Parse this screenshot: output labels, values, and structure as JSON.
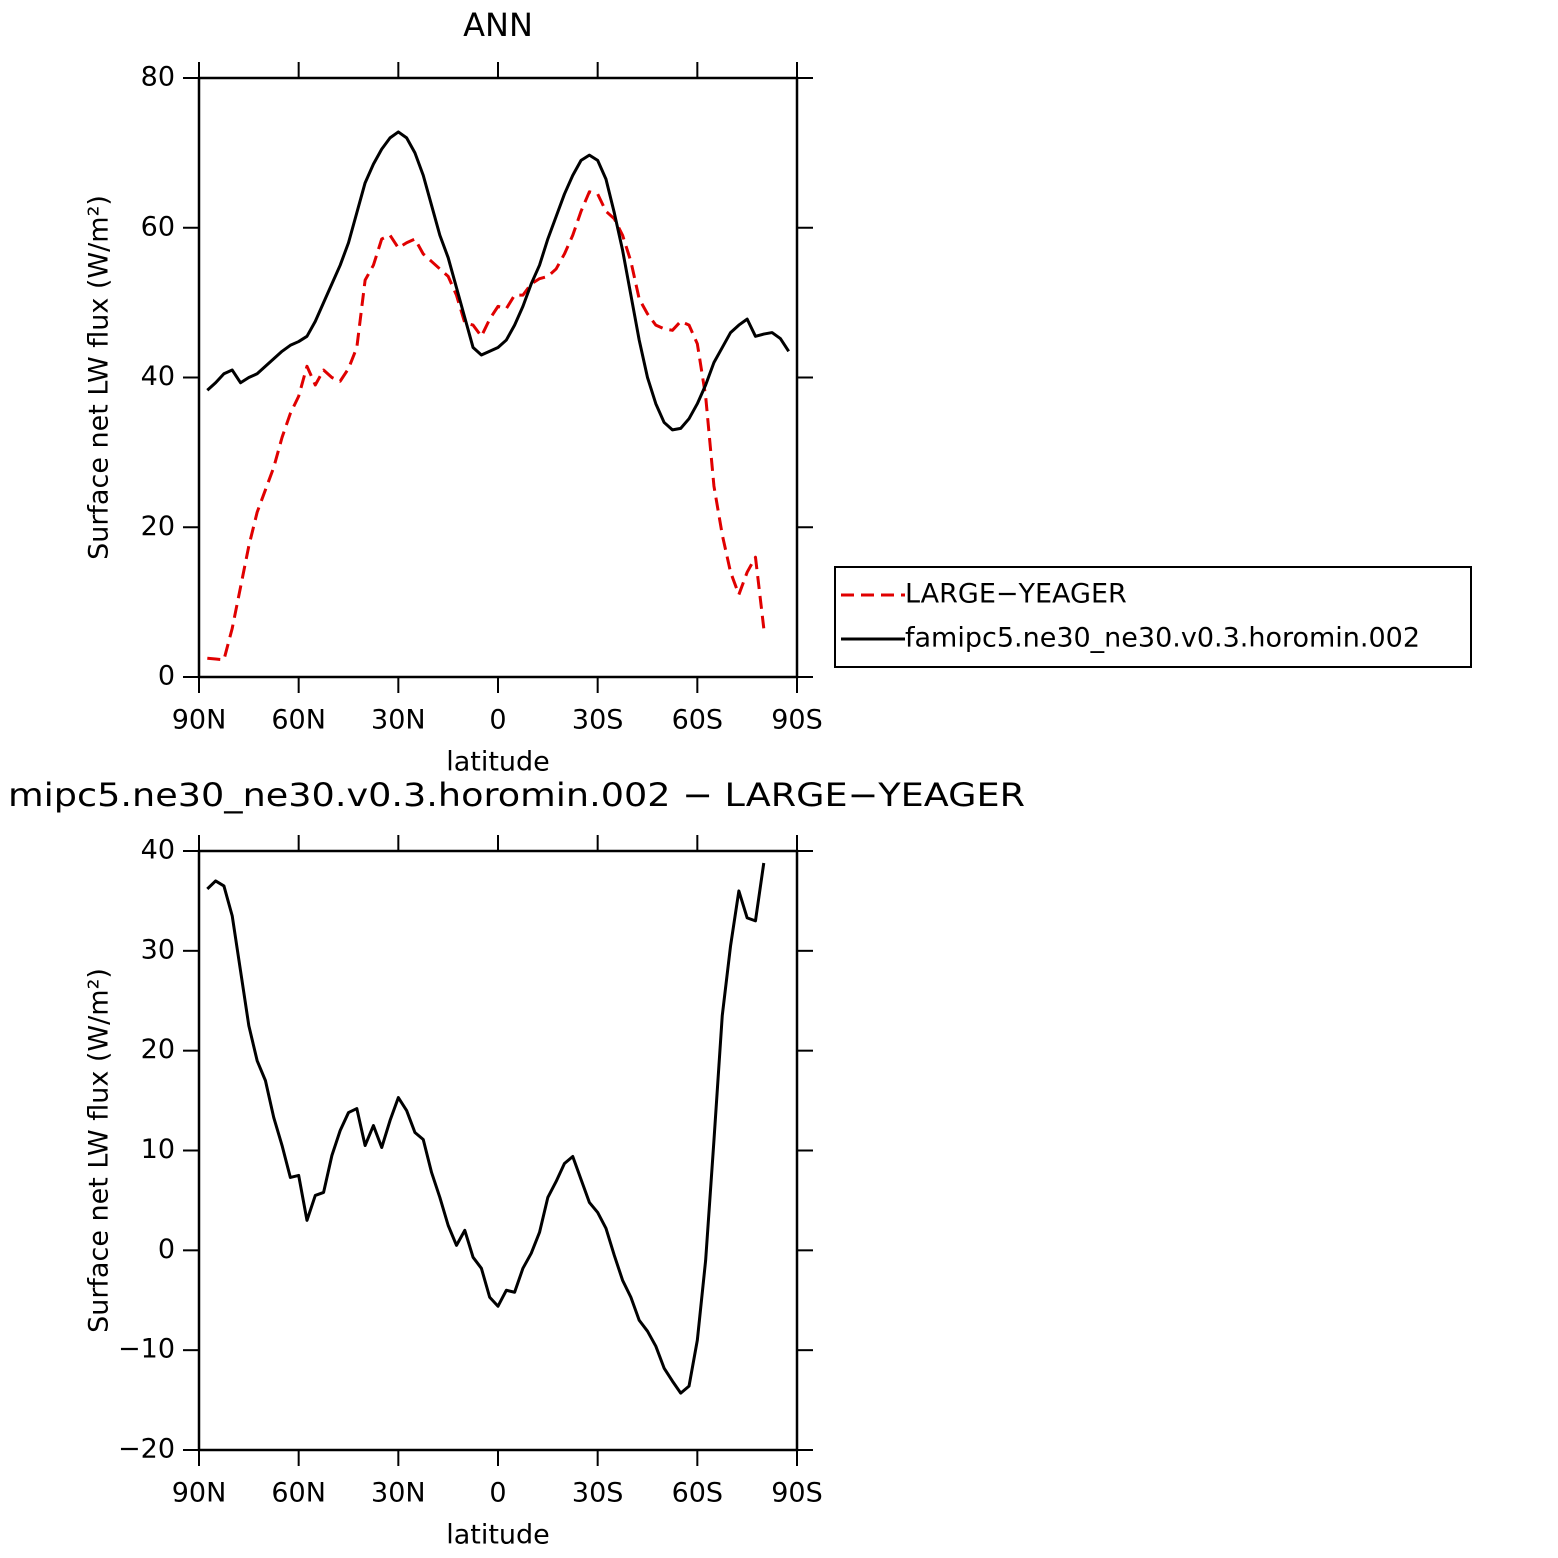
{
  "chart_data": [
    {
      "type": "line",
      "title": "ANN",
      "xlabel": "latitude",
      "ylabel": "Surface net LW flux (W/m²)",
      "x": [
        87.5,
        85,
        82.5,
        80,
        77.5,
        75,
        72.5,
        70,
        67.5,
        65,
        62.5,
        60,
        57.5,
        55,
        52.5,
        50,
        47.5,
        45,
        42.5,
        40,
        37.5,
        35,
        32.5,
        30,
        27.5,
        25,
        22.5,
        20,
        17.5,
        15,
        12.5,
        10,
        7.5,
        5,
        2.5,
        0,
        -2.5,
        -5,
        -7.5,
        -10,
        -12.5,
        -15,
        -17.5,
        -20,
        -22.5,
        -25,
        -27.5,
        -30,
        -32.5,
        -35,
        -37.5,
        -40,
        -42.5,
        -45,
        -47.5,
        -50,
        -52.5,
        -55,
        -57.5,
        -60,
        -62.5,
        -65,
        -67.5,
        -70,
        -72.5,
        -75,
        -77.5,
        -80,
        -82.5,
        -85,
        -87.5
      ],
      "series": [
        {
          "name": "LARGE−YEAGER",
          "color": "#e00000",
          "dashed": true,
          "values": [
            2.5,
            2.4,
            2.3,
            6.5,
            12,
            17.5,
            22,
            25,
            28,
            32,
            35.2,
            37.5,
            41.5,
            39,
            41,
            40,
            39.5,
            41.2,
            44,
            53,
            55,
            58.5,
            59,
            57.3,
            58,
            58.5,
            56.5,
            55.5,
            54.5,
            53.5,
            51,
            47.3,
            47,
            45.5,
            47.8,
            49.5,
            49.2,
            51,
            51,
            52.5,
            53.2,
            53.5,
            54.5,
            56.5,
            59,
            62.2,
            64.8,
            64.5,
            62.2,
            61.2,
            59,
            55.5,
            50.5,
            48.5,
            47,
            46.5,
            46.3,
            47.5,
            47,
            44.5,
            37.5,
            25.5,
            19,
            14,
            11,
            14,
            16,
            6.5,
            null,
            null,
            null
          ]
        },
        {
          "name": "famipc5.ne30_ne30.v0.3.horomin.002",
          "color": "#000000",
          "dashed": false,
          "values": [
            38.3,
            39.3,
            40.5,
            41,
            39.3,
            40,
            40.5,
            41.5,
            42.5,
            43.5,
            44.3,
            44.8,
            45.5,
            47.5,
            50,
            52.5,
            55,
            58,
            62,
            66,
            68.5,
            70.5,
            72,
            72.8,
            72,
            70,
            67,
            63,
            59,
            56,
            52,
            48,
            44,
            43,
            43.5,
            44,
            45,
            47,
            49.5,
            52.5,
            55,
            58.5,
            61.5,
            64.5,
            67,
            69,
            69.7,
            69,
            66.5,
            62,
            57,
            51,
            45,
            40,
            36.5,
            34,
            33,
            33.2,
            34.5,
            36.5,
            39,
            42,
            44,
            46,
            47,
            47.8,
            45.5,
            45.8,
            46,
            45.2,
            43.5
          ]
        }
      ],
      "xlim": [
        90,
        -90
      ],
      "xticks": [
        {
          "value": 90,
          "label": "90N"
        },
        {
          "value": 60,
          "label": "60N"
        },
        {
          "value": 30,
          "label": "30N"
        },
        0,
        {
          "value": -30,
          "label": "30S"
        },
        {
          "value": -60,
          "label": "60S"
        },
        {
          "value": -90,
          "label": "90S"
        }
      ],
      "ylim": [
        0,
        80
      ],
      "yticks": [
        0,
        20,
        40,
        60,
        80
      ],
      "legend": "outside-right"
    },
    {
      "type": "line",
      "title": "mipc5.ne30_ne30.v0.3.horomin.002 − LARGE−YEAGER",
      "xlabel": "latitude",
      "ylabel": "Surface net LW flux (W/m²)",
      "x": [
        87.5,
        85,
        82.5,
        80,
        77.5,
        75,
        72.5,
        70,
        67.5,
        65,
        62.5,
        60,
        57.5,
        55,
        52.5,
        50,
        47.5,
        45,
        42.5,
        40,
        37.5,
        35,
        32.5,
        30,
        27.5,
        25,
        22.5,
        20,
        17.5,
        15,
        12.5,
        10,
        7.5,
        5,
        2.5,
        0,
        -2.5,
        -5,
        -7.5,
        -10,
        -12.5,
        -15,
        -17.5,
        -20,
        -22.5,
        -25,
        -27.5,
        -30,
        -32.5,
        -35,
        -37.5,
        -40,
        -42.5,
        -45,
        -47.5,
        -50,
        -52.5,
        -55,
        -57.5,
        -60,
        -62.5,
        -65,
        -67.5,
        -70,
        -72.5,
        -75,
        -77.5,
        -80,
        -82.5,
        -85,
        -87.5
      ],
      "series": [
        {
          "color": "#000000",
          "dashed": false,
          "values": [
            36.2,
            37,
            36.5,
            33.5,
            28,
            22.5,
            19,
            17,
            13.3,
            10.5,
            7.3,
            7.5,
            3,
            5.5,
            5.8,
            9.5,
            12,
            13.8,
            14.2,
            10.5,
            12.5,
            10.3,
            13,
            15.3,
            14,
            11.8,
            11.1,
            7.8,
            5.3,
            2.5,
            0.5,
            2,
            -0.7,
            -1.8,
            -4.7,
            -5.6,
            -4,
            -4.2,
            -1.8,
            -0.3,
            1.8,
            5.3,
            6.9,
            8.7,
            9.4,
            7.1,
            4.8,
            3.8,
            2.2,
            -0.5,
            -3,
            -4.7,
            -7,
            -8.1,
            -9.6,
            -11.8,
            -13.1,
            -14.3,
            -13.6,
            -9,
            -1,
            11,
            23.5,
            30.5,
            36,
            33.3,
            33,
            38.8,
            null,
            null,
            null
          ]
        }
      ],
      "xlim": [
        90,
        -90
      ],
      "xticks": [
        {
          "value": 90,
          "label": "90N"
        },
        {
          "value": 60,
          "label": "60N"
        },
        {
          "value": 30,
          "label": "30N"
        },
        0,
        {
          "value": -30,
          "label": "30S"
        },
        {
          "value": -60,
          "label": "60S"
        },
        {
          "value": -90,
          "label": "90S"
        }
      ],
      "ylim": [
        -20,
        40
      ],
      "yticks": [
        {
          "value": -20,
          "label": "−20"
        },
        {
          "value": -10,
          "label": "−10"
        },
        0,
        10,
        20,
        30,
        40
      ]
    }
  ]
}
